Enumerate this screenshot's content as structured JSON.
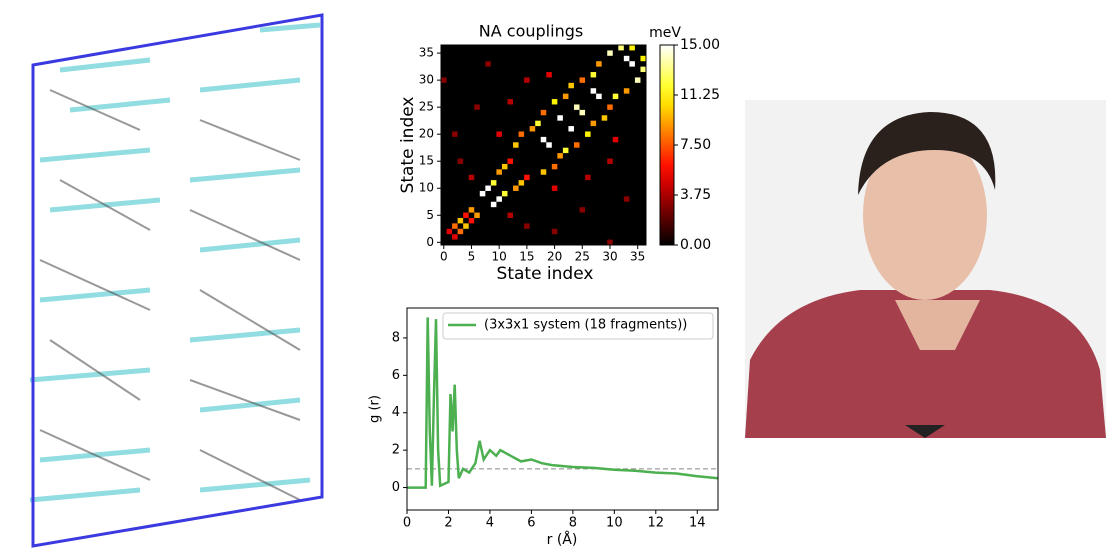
{
  "chart_data": [
    {
      "type": "heatmap",
      "title": "NA couplings",
      "xlabel": "State index",
      "ylabel": "State index",
      "colorbar_label": "meV",
      "colormap": "hot",
      "xlim": [
        -0.5,
        36.5
      ],
      "ylim": [
        -0.5,
        36.5
      ],
      "xticks": [
        0,
        5,
        10,
        15,
        20,
        25,
        30,
        35
      ],
      "yticks": [
        0,
        5,
        10,
        15,
        20,
        25,
        30,
        35
      ],
      "clim": [
        0,
        15
      ],
      "cticks": [
        {
          "value": 0,
          "label": "0.00"
        },
        {
          "value": 3.75,
          "label": "3.75"
        },
        {
          "value": 7.5,
          "label": "7.50"
        },
        {
          "value": 11.25,
          "label": "11.25"
        },
        {
          "value": 15,
          "label": "15.00"
        }
      ],
      "cell_x": [
        2,
        3,
        4,
        5,
        1,
        7,
        8,
        9,
        10,
        11,
        12,
        13,
        14,
        16,
        17,
        18,
        20,
        22,
        23,
        25,
        27,
        28,
        30,
        32,
        33,
        34,
        18,
        21,
        24,
        27,
        5,
        3,
        10,
        6,
        15,
        8,
        19,
        12,
        2,
        0,
        3,
        4,
        5,
        6,
        2,
        9,
        10,
        11,
        13,
        14,
        15,
        18,
        20,
        21,
        22,
        24,
        26,
        27,
        29,
        30,
        31,
        33,
        35,
        36,
        34,
        36,
        19,
        23,
        25,
        28,
        12,
        15,
        20,
        25,
        30,
        33,
        31,
        26,
        20,
        30
      ],
      "cell_y": [
        3,
        4,
        5,
        6,
        2,
        9,
        10,
        11,
        13,
        14,
        15,
        18,
        20,
        21,
        22,
        24,
        26,
        27,
        29,
        30,
        31,
        33,
        35,
        36,
        34,
        36,
        19,
        23,
        25,
        28,
        12,
        15,
        20,
        25,
        30,
        33,
        31,
        26,
        20,
        30,
        2,
        3,
        4,
        5,
        1,
        7,
        8,
        9,
        10,
        11,
        12,
        13,
        14,
        16,
        17,
        18,
        20,
        22,
        23,
        25,
        27,
        28,
        30,
        32,
        33,
        34,
        18,
        21,
        24,
        27,
        5,
        3,
        10,
        6,
        15,
        8,
        19,
        12,
        2,
        0
      ],
      "values": [
        8,
        10,
        6,
        9,
        5,
        15,
        15,
        12,
        9,
        10,
        6,
        10,
        8,
        9,
        12,
        8,
        11,
        9,
        10,
        8,
        12,
        9,
        14,
        13,
        15,
        11,
        15,
        15,
        14,
        15,
        4,
        3,
        5,
        3,
        4,
        3,
        5,
        4,
        3,
        3,
        8,
        10,
        6,
        9,
        5,
        15,
        15,
        12,
        9,
        10,
        6,
        10,
        8,
        9,
        12,
        8,
        11,
        9,
        10,
        8,
        12,
        9,
        14,
        13,
        15,
        11,
        15,
        15,
        14,
        15,
        4,
        3,
        5,
        3,
        4,
        3,
        5,
        4,
        3,
        3
      ]
    },
    {
      "type": "line",
      "xlabel": "r (Å)",
      "ylabel": "g (r)",
      "xlim": [
        0,
        15
      ],
      "ylim": [
        -1.2,
        9.6
      ],
      "xticks": [
        0,
        2,
        4,
        6,
        8,
        10,
        12,
        14
      ],
      "yticks": [
        0,
        2,
        4,
        6,
        8
      ],
      "reference_line": 1,
      "legend": "upper right",
      "x": [
        0,
        0.9,
        1.0,
        1.1,
        1.2,
        1.3,
        1.4,
        1.5,
        1.6,
        2.0,
        2.1,
        2.2,
        2.3,
        2.4,
        2.5,
        2.7,
        3.0,
        3.3,
        3.5,
        3.7,
        4.0,
        4.3,
        4.5,
        5.0,
        5.5,
        6,
        6.5,
        7,
        8,
        9,
        10,
        11,
        12,
        13,
        14,
        15
      ],
      "series": [
        {
          "name": "(3x3x1 system (18 fragments))",
          "color": "#4caf50",
          "values": [
            0,
            0,
            9.1,
            3,
            0.1,
            5,
            9,
            2,
            0.1,
            0.3,
            5,
            3,
            5.5,
            2,
            0.5,
            1,
            0.8,
            1.3,
            2.5,
            1.5,
            2,
            1.7,
            2,
            1.7,
            1.4,
            1.5,
            1.3,
            1.2,
            1.1,
            1.05,
            0.95,
            0.9,
            0.8,
            0.75,
            0.6,
            0.5
          ]
        }
      ]
    }
  ]
}
